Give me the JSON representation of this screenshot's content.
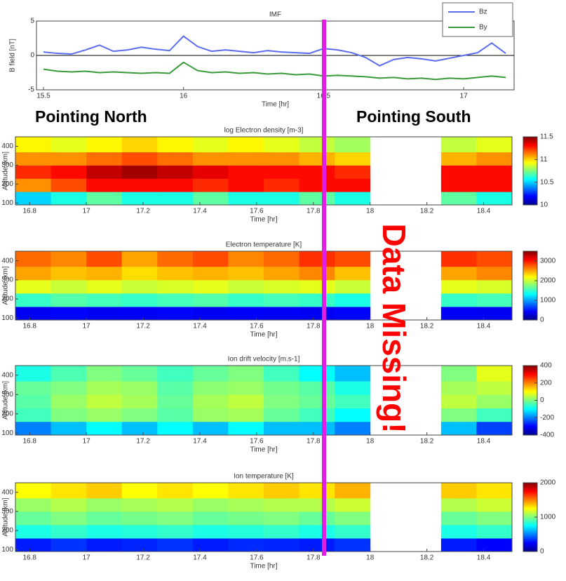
{
  "chart_data": [
    {
      "type": "line",
      "title": "IMF",
      "xlabel": "Time [hr]",
      "ylabel": "B field [nT]",
      "xlim": [
        15.475,
        17.18
      ],
      "xticks": [
        15.5,
        16,
        16.5,
        17
      ],
      "ylim": [
        -5,
        5
      ],
      "yticks": [
        -5,
        0,
        5
      ],
      "legend": "upper right",
      "x": [
        15.5,
        15.55,
        15.6,
        15.65,
        15.7,
        15.75,
        15.8,
        15.85,
        15.9,
        15.95,
        16.0,
        16.05,
        16.1,
        16.15,
        16.2,
        16.25,
        16.3,
        16.35,
        16.4,
        16.45,
        16.5,
        16.55,
        16.6,
        16.65,
        16.7,
        16.75,
        16.8,
        16.85,
        16.9,
        16.95,
        17.0,
        17.05,
        17.1,
        17.15
      ],
      "series": [
        {
          "name": "Bz",
          "color": "#5a6cf0",
          "values": [
            0.5,
            0.3,
            0.2,
            0.8,
            1.5,
            0.6,
            0.8,
            1.2,
            0.9,
            0.7,
            2.8,
            1.3,
            0.6,
            0.8,
            0.6,
            0.4,
            0.7,
            0.5,
            0.4,
            0.3,
            1.0,
            0.8,
            0.4,
            -0.3,
            -1.5,
            -0.6,
            -0.3,
            -0.5,
            -0.8,
            -0.4,
            0.0,
            0.4,
            1.8,
            0.3
          ]
        },
        {
          "name": "By",
          "color": "#3a9a3a",
          "values": [
            -2.0,
            -2.3,
            -2.4,
            -2.3,
            -2.5,
            -2.4,
            -2.5,
            -2.6,
            -2.5,
            -2.6,
            -1.0,
            -2.2,
            -2.5,
            -2.4,
            -2.6,
            -2.5,
            -2.7,
            -2.6,
            -2.8,
            -2.7,
            -3.0,
            -2.9,
            -3.0,
            -3.1,
            -3.3,
            -3.2,
            -3.4,
            -3.3,
            -3.5,
            -3.3,
            -3.4,
            -3.2,
            -3.0,
            -3.2
          ]
        }
      ]
    },
    {
      "type": "heatmap",
      "title": "log Electron density [m-3]",
      "xlabel": "Time [hr]",
      "ylabel": "Altitude [km]",
      "colormap": "jet",
      "xlim": [
        16.75,
        18.5
      ],
      "xticks": [
        16.8,
        17,
        17.2,
        17.4,
        17.6,
        17.8,
        18,
        18.2,
        18.4
      ],
      "ylim": [
        90,
        450
      ],
      "yticks": [
        100,
        200,
        300,
        400
      ],
      "clim": [
        10,
        11.5
      ],
      "cticks": [
        10,
        10.5,
        11,
        11.5
      ],
      "xbins": [
        16.75,
        16.875,
        17.0,
        17.125,
        17.25,
        17.375,
        17.5,
        17.625,
        17.75,
        17.875,
        18.0,
        18.125,
        18.25,
        18.375,
        18.5
      ],
      "ybins": [
        90,
        160,
        230,
        300,
        370,
        450
      ],
      "z": [
        [
          10.5,
          10.6,
          10.7,
          10.6,
          10.6,
          10.7,
          10.6,
          10.6,
          10.7,
          10.6,
          null,
          null,
          10.7,
          10.6
        ],
        [
          11.1,
          11.2,
          11.3,
          11.3,
          11.3,
          11.25,
          11.3,
          11.25,
          11.3,
          11.3,
          null,
          null,
          11.3,
          11.3
        ],
        [
          11.25,
          11.3,
          11.4,
          11.45,
          11.4,
          11.35,
          11.3,
          11.3,
          11.3,
          11.25,
          null,
          null,
          11.3,
          11.3
        ],
        [
          11.1,
          11.1,
          11.15,
          11.2,
          11.15,
          11.1,
          11.1,
          11.1,
          11.05,
          11.0,
          null,
          null,
          11.05,
          11.1
        ],
        [
          10.95,
          10.9,
          10.95,
          11.0,
          10.95,
          10.9,
          10.95,
          10.9,
          10.85,
          10.8,
          null,
          null,
          10.85,
          10.9
        ]
      ]
    },
    {
      "type": "heatmap",
      "title": "Electron temperature [K]",
      "xlabel": "Time [hr]",
      "ylabel": "Altitude [km]",
      "colormap": "jet",
      "xlim": [
        16.75,
        18.5
      ],
      "xticks": [
        16.8,
        17,
        17.2,
        17.4,
        17.6,
        17.8,
        18,
        18.2,
        18.4
      ],
      "ylim": [
        90,
        450
      ],
      "yticks": [
        100,
        200,
        300,
        400
      ],
      "clim": [
        0,
        3500
      ],
      "cticks": [
        0,
        1000,
        2000,
        3000
      ],
      "xbins": [
        16.75,
        16.875,
        17.0,
        17.125,
        17.25,
        17.375,
        17.5,
        17.625,
        17.75,
        17.875,
        18.0,
        18.125,
        18.25,
        18.375,
        18.5
      ],
      "ybins": [
        90,
        160,
        230,
        300,
        370,
        450
      ],
      "z": [
        [
          400,
          450,
          400,
          420,
          450,
          400,
          430,
          420,
          400,
          450,
          null,
          null,
          420,
          400
        ],
        [
          1500,
          1600,
          1550,
          1500,
          1550,
          1600,
          1500,
          1550,
          1500,
          1400,
          null,
          null,
          1500,
          1550
        ],
        [
          2100,
          2000,
          2100,
          2000,
          2050,
          2100,
          2000,
          2050,
          2100,
          2000,
          null,
          null,
          2100,
          2050
        ],
        [
          2500,
          2400,
          2450,
          2300,
          2400,
          2450,
          2400,
          2500,
          2600,
          2400,
          null,
          null,
          2500,
          2600
        ],
        [
          2700,
          2600,
          2800,
          2500,
          2700,
          2800,
          2600,
          2700,
          2900,
          2800,
          null,
          null,
          2900,
          2800
        ]
      ]
    },
    {
      "type": "heatmap",
      "title": "Ion drift velocity [m.s-1]",
      "xlabel": "Time [hr]",
      "ylabel": "Altitude [km]",
      "colormap": "jet",
      "xlim": [
        16.75,
        18.5
      ],
      "xticks": [
        16.8,
        17,
        17.2,
        17.4,
        17.6,
        17.8,
        18,
        18.2,
        18.4
      ],
      "ylim": [
        90,
        450
      ],
      "yticks": [
        100,
        200,
        300,
        400
      ],
      "clim": [
        -400,
        400
      ],
      "cticks": [
        -400,
        -200,
        0,
        200,
        400
      ],
      "xbins": [
        16.75,
        16.875,
        17.0,
        17.125,
        17.25,
        17.375,
        17.5,
        17.625,
        17.75,
        17.875,
        18.0,
        18.125,
        18.25,
        18.375,
        18.5
      ],
      "ybins": [
        90,
        160,
        230,
        300,
        370,
        450
      ],
      "z": [
        [
          -200,
          -150,
          -100,
          -150,
          -100,
          -150,
          -100,
          -150,
          -150,
          -200,
          null,
          null,
          -150,
          -250
        ],
        [
          -50,
          0,
          20,
          0,
          -30,
          20,
          30,
          -20,
          -50,
          -100,
          null,
          null,
          0,
          -50
        ],
        [
          -30,
          20,
          50,
          30,
          -20,
          30,
          50,
          0,
          -20,
          -50,
          null,
          null,
          50,
          20
        ],
        [
          -20,
          0,
          30,
          20,
          -30,
          10,
          20,
          -10,
          -30,
          -80,
          null,
          null,
          30,
          50
        ],
        [
          -80,
          -40,
          0,
          -20,
          -50,
          -20,
          0,
          -50,
          -100,
          -150,
          null,
          null,
          0,
          80
        ]
      ]
    },
    {
      "type": "heatmap",
      "title": "Ion temperature [K]",
      "xlabel": "Time [hr]",
      "ylabel": "Altitude [km]",
      "colormap": "jet",
      "xlim": [
        16.75,
        18.5
      ],
      "xticks": [
        16.8,
        17,
        17.2,
        17.4,
        17.6,
        17.8,
        18,
        18.2,
        18.4
      ],
      "ylim": [
        90,
        450
      ],
      "yticks": [
        100,
        200,
        300,
        400
      ],
      "clim": [
        0,
        2000
      ],
      "cticks": [
        0,
        1000,
        2000
      ],
      "xbins": [
        16.75,
        16.875,
        17.0,
        17.125,
        17.25,
        17.375,
        17.5,
        17.625,
        17.75,
        17.875,
        18.0,
        18.125,
        18.25,
        18.375,
        18.5
      ],
      "ybins": [
        90,
        160,
        230,
        300,
        370,
        450
      ],
      "z": [
        [
          300,
          350,
          300,
          320,
          350,
          300,
          330,
          320,
          300,
          350,
          null,
          null,
          300,
          250
        ],
        [
          800,
          850,
          800,
          820,
          850,
          800,
          820,
          850,
          800,
          850,
          null,
          null,
          800,
          850
        ],
        [
          950,
          1000,
          950,
          980,
          1000,
          950,
          980,
          1000,
          950,
          1000,
          null,
          null,
          950,
          1000
        ],
        [
          1050,
          1100,
          1050,
          1080,
          1100,
          1050,
          1080,
          1100,
          1100,
          1150,
          null,
          null,
          1100,
          1150
        ],
        [
          1250,
          1300,
          1350,
          1250,
          1300,
          1250,
          1300,
          1350,
          1300,
          1400,
          null,
          null,
          1350,
          1300
        ]
      ]
    }
  ],
  "annotations": [
    "Pointing North",
    "Pointing South",
    "Data Missing!"
  ]
}
